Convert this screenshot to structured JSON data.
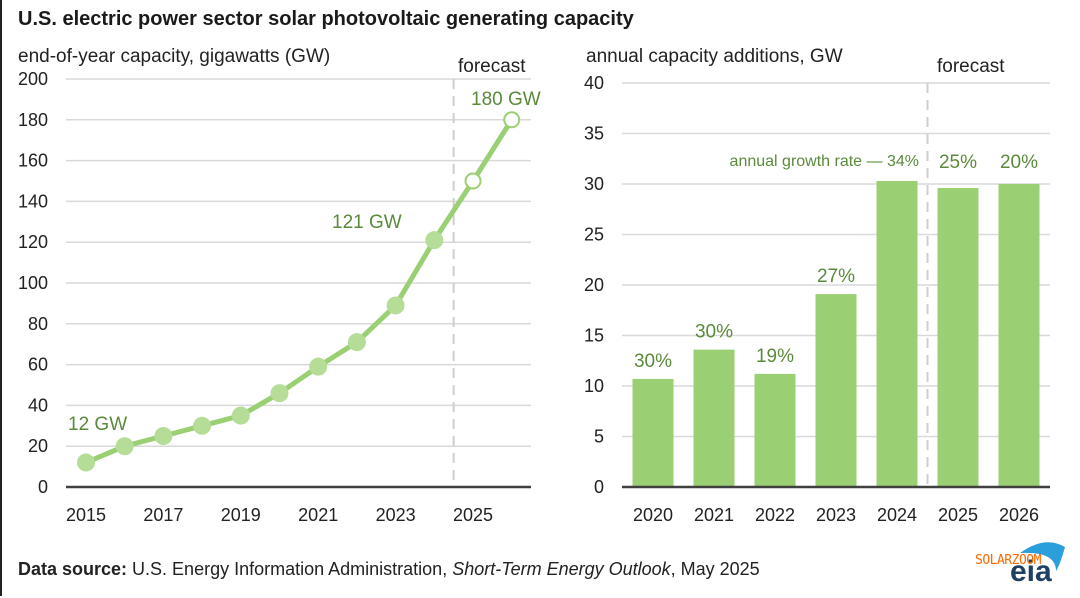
{
  "title": "U.S. electric power sector solar photovoltaic generating capacity",
  "footer": {
    "label": "Data source:",
    "text_a": " U.S. Energy Information Administration, ",
    "text_italic": "Short-Term Energy Outlook",
    "text_b": ", May 2025"
  },
  "logo": {
    "text": "eia",
    "watermark": "SOLARZOOM"
  },
  "colors": {
    "series": "#9bcf73",
    "label": "#5a8a3a",
    "grid": "#d9d9d9",
    "axis": "#404040"
  },
  "chart_data": [
    {
      "type": "line",
      "subtitle": "end-of-year capacity, gigawatts (GW)",
      "x": [
        2015,
        2016,
        2017,
        2018,
        2019,
        2020,
        2021,
        2022,
        2023,
        2024,
        2025,
        2026
      ],
      "values": [
        12,
        20,
        25,
        30,
        35,
        46,
        59,
        71,
        89,
        121,
        150,
        180
      ],
      "forecast_from": 2025,
      "x_tick_labels": [
        "2015",
        "2017",
        "2019",
        "2021",
        "2023",
        "2025"
      ],
      "y_ticks": [
        0,
        20,
        40,
        60,
        80,
        100,
        120,
        140,
        160,
        180,
        200
      ],
      "ylim": [
        0,
        200
      ],
      "grid": true,
      "forecast_label": "forecast",
      "annotations": [
        {
          "x": 2015,
          "text": "12 GW"
        },
        {
          "x": 2024,
          "text": "121 GW"
        },
        {
          "x": 2026,
          "text": "180 GW"
        }
      ]
    },
    {
      "type": "bar",
      "subtitle": "annual capacity additions, GW",
      "categories": [
        "2020",
        "2021",
        "2022",
        "2023",
        "2024",
        "2025",
        "2026"
      ],
      "values": [
        10.7,
        13.6,
        11.2,
        19.1,
        30.3,
        29.6,
        30.0
      ],
      "growth_labels": [
        "30%",
        "30%",
        "19%",
        "27%",
        "annual  growth rate — 34%",
        "25%",
        "20%"
      ],
      "forecast_from": "2025",
      "y_ticks": [
        0,
        5,
        10,
        15,
        20,
        25,
        30,
        35,
        40
      ],
      "ylim": [
        0,
        40
      ],
      "grid": true,
      "forecast_label": "forecast"
    }
  ]
}
